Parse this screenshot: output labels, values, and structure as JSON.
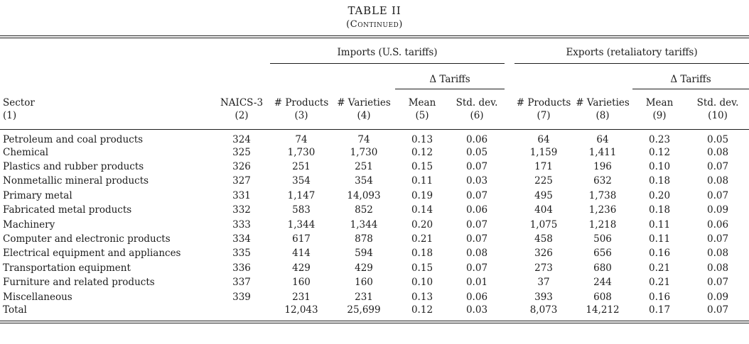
{
  "title": "TABLE II",
  "subtitle": "(Continued)",
  "table": {
    "group_headers": {
      "imports": "Imports (U.S. tariffs)",
      "exports": "Exports (retaliatory tariffs)"
    },
    "delta_header": "Δ Tariffs",
    "columns": [
      {
        "label": "Sector",
        "num": "(1)"
      },
      {
        "label": "NAICS-3",
        "num": "(2)"
      },
      {
        "label": "# Products",
        "num": "(3)"
      },
      {
        "label": "# Varieties",
        "num": "(4)"
      },
      {
        "label": "Mean",
        "num": "(5)"
      },
      {
        "label": "Std. dev.",
        "num": "(6)"
      },
      {
        "label": "# Products",
        "num": "(7)"
      },
      {
        "label": "# Varieties",
        "num": "(8)"
      },
      {
        "label": "Mean",
        "num": "(9)"
      },
      {
        "label": "Std. dev.",
        "num": "(10)"
      }
    ],
    "rows": [
      {
        "sector": "Petroleum and coal products",
        "naics": "324",
        "imports": [
          "74",
          "74",
          "0.13",
          "0.06"
        ],
        "exports": [
          "64",
          "64",
          "0.23",
          "0.05"
        ]
      },
      {
        "sector": "Chemical",
        "naics": "325",
        "imports": [
          "1,730",
          "1,730",
          "0.12",
          "0.05"
        ],
        "exports": [
          "1,159",
          "1,411",
          "0.12",
          "0.08"
        ]
      },
      {
        "sector": "Plastics and rubber products",
        "naics": "326",
        "imports": [
          "251",
          "251",
          "0.15",
          "0.07"
        ],
        "exports": [
          "171",
          "196",
          "0.10",
          "0.07"
        ]
      },
      {
        "sector": "Nonmetallic mineral products",
        "naics": "327",
        "imports": [
          "354",
          "354",
          "0.11",
          "0.03"
        ],
        "exports": [
          "225",
          "632",
          "0.18",
          "0.08"
        ]
      },
      {
        "sector": "Primary metal",
        "naics": "331",
        "imports": [
          "1,147",
          "14,093",
          "0.19",
          "0.07"
        ],
        "exports": [
          "495",
          "1,738",
          "0.20",
          "0.07"
        ]
      },
      {
        "sector": "Fabricated metal products",
        "naics": "332",
        "imports": [
          "583",
          "852",
          "0.14",
          "0.06"
        ],
        "exports": [
          "404",
          "1,236",
          "0.18",
          "0.09"
        ]
      },
      {
        "sector": "Machinery",
        "naics": "333",
        "imports": [
          "1,344",
          "1,344",
          "0.20",
          "0.07"
        ],
        "exports": [
          "1,075",
          "1,218",
          "0.11",
          "0.06"
        ]
      },
      {
        "sector": "Computer and electronic products",
        "naics": "334",
        "imports": [
          "617",
          "878",
          "0.21",
          "0.07"
        ],
        "exports": [
          "458",
          "506",
          "0.11",
          "0.07"
        ]
      },
      {
        "sector": "Electrical equipment and appliances",
        "naics": "335",
        "imports": [
          "414",
          "594",
          "0.18",
          "0.08"
        ],
        "exports": [
          "326",
          "656",
          "0.16",
          "0.08"
        ]
      },
      {
        "sector": "Transportation equipment",
        "naics": "336",
        "imports": [
          "429",
          "429",
          "0.15",
          "0.07"
        ],
        "exports": [
          "273",
          "680",
          "0.21",
          "0.08"
        ]
      },
      {
        "sector": "Furniture and related products",
        "naics": "337",
        "imports": [
          "160",
          "160",
          "0.10",
          "0.01"
        ],
        "exports": [
          "37",
          "244",
          "0.21",
          "0.07"
        ]
      },
      {
        "sector": "Miscellaneous",
        "naics": "339",
        "imports": [
          "231",
          "231",
          "0.13",
          "0.06"
        ],
        "exports": [
          "393",
          "608",
          "0.16",
          "0.09"
        ]
      },
      {
        "sector": "Total",
        "naics": "",
        "imports": [
          "12,043",
          "25,699",
          "0.12",
          "0.03"
        ],
        "exports": [
          "8,073",
          "14,212",
          "0.17",
          "0.07"
        ]
      }
    ]
  }
}
